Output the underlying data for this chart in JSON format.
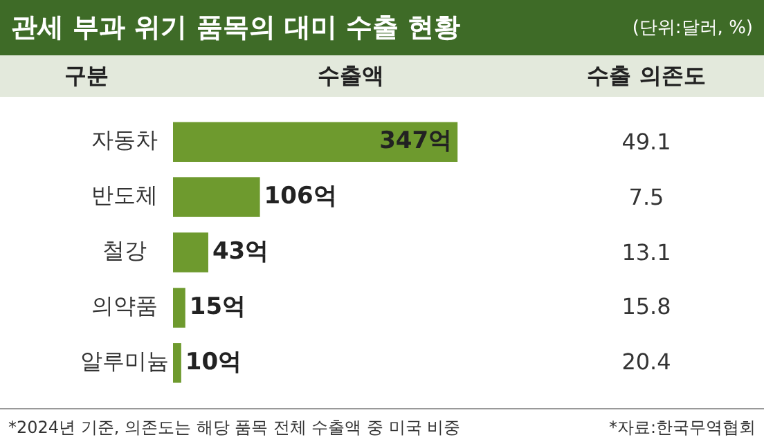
{
  "chart_data": [
    {
      "type": "bar",
      "orientation": "horizontal",
      "title": "관세 부과 위기 품목의 대미 수출 현황",
      "ylabel": "구분",
      "categories": [
        "자동차",
        "반도체",
        "철강",
        "의약품",
        "알루미늄"
      ],
      "series": [
        {
          "name": "수출액",
          "color": "#6e9a2e",
          "values": [
            347,
            106,
            43,
            15,
            10
          ],
          "value_labels": [
            "347억",
            "106억",
            "43억",
            "15억",
            "10억"
          ]
        }
      ],
      "annotations": [
        "*2024년 기준, 의존도는 해당 품목 전체 수출액 중 미국 비중",
        "*자료:한국무역협회"
      ]
    },
    {
      "type": "other",
      "subtitle": "(단위:달러, %)",
      "title": "수출 의존도",
      "values": [
        49.1,
        7.5,
        13.1,
        15.8,
        20.4
      ],
      "data_labels": true
    }
  ]
}
